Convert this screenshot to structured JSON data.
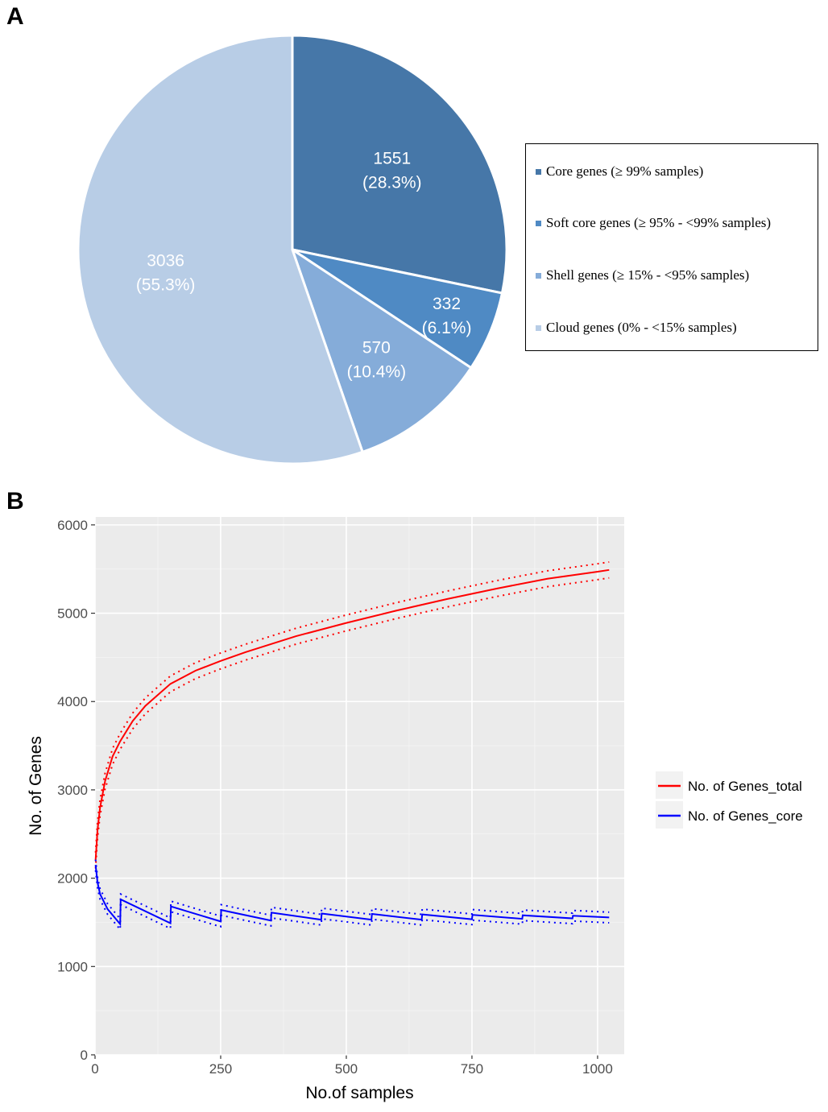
{
  "panels": {
    "a": "A",
    "b": "B"
  },
  "chart_data": [
    {
      "type": "pie",
      "start": "top, clockwise",
      "slices": [
        {
          "label": "Core genes (≥ 99% samples)",
          "value": 1551,
          "percent_label": "(28.3%)",
          "color": "#4677a8"
        },
        {
          "label": "Soft core genes (≥ 95% - <99% samples)",
          "value": 332,
          "percent_label": "(6.1%)",
          "color": "#4f8ac4"
        },
        {
          "label": "Shell genes (≥ 15% - <95% samples)",
          "value": 570,
          "percent_label": "(10.4%)",
          "color": "#85acd9"
        },
        {
          "label": "Cloud genes (0% - <15% samples)",
          "value": 3036,
          "percent_label": "(55.3%)",
          "color": "#b8cde6"
        }
      ],
      "legend_position": "right"
    },
    {
      "type": "line",
      "xlabel": "No.of samples",
      "ylabel": "No. of Genes",
      "xlim": [
        0,
        1053
      ],
      "ylim": [
        0,
        6090
      ],
      "xticks": [
        0,
        250,
        500,
        750,
        1000
      ],
      "yticks": [
        0,
        1000,
        2000,
        3000,
        4000,
        5000,
        6000
      ],
      "grid": true,
      "background": "#ebebeb",
      "legend_position": "right",
      "series": [
        {
          "name": "No. of Genes_total",
          "color": "#ff0000",
          "x": [
            1,
            5,
            10,
            20,
            35,
            50,
            75,
            100,
            150,
            200,
            250,
            300,
            400,
            500,
            600,
            700,
            800,
            900,
            1000,
            1023
          ],
          "y": [
            2200,
            2550,
            2800,
            3100,
            3380,
            3550,
            3780,
            3950,
            4200,
            4350,
            4460,
            4560,
            4740,
            4890,
            5030,
            5160,
            5280,
            5390,
            5470,
            5490
          ],
          "band": 90
        },
        {
          "name": "No. of Genes_core",
          "color": "#0000ff",
          "x": [
            1,
            5,
            10,
            25,
            50,
            51,
            150,
            151,
            250,
            251,
            350,
            351,
            450,
            451,
            550,
            551,
            650,
            651,
            750,
            751,
            850,
            851,
            950,
            951,
            1023
          ],
          "y": [
            2150,
            1950,
            1820,
            1650,
            1480,
            1760,
            1490,
            1680,
            1510,
            1640,
            1520,
            1610,
            1530,
            1600,
            1530,
            1595,
            1530,
            1590,
            1535,
            1585,
            1540,
            1580,
            1545,
            1575,
            1555
          ],
          "band": 60
        }
      ]
    }
  ]
}
